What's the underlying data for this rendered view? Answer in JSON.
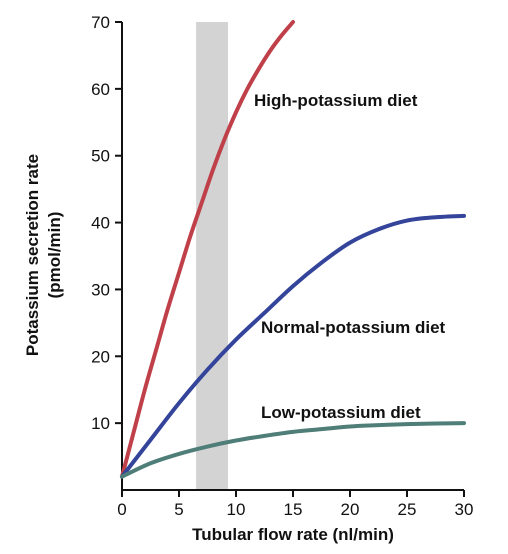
{
  "chart_data": {
    "type": "line",
    "xlabel": "Tubular flow rate (nl/min)",
    "ylabel_line1": "Potassium secretion rate",
    "ylabel_line2": "(pmol/min)",
    "xlim": [
      0,
      30
    ],
    "ylim": [
      0,
      70
    ],
    "x_ticks": [
      "0",
      "5",
      "10",
      "15",
      "20",
      "25",
      "30"
    ],
    "y_ticks": [
      "10",
      "20",
      "30",
      "40",
      "50",
      "60",
      "70"
    ],
    "grid": false,
    "shaded_band": {
      "x_start": 6.5,
      "x_end": 9.3,
      "color": "#d3d3d3"
    },
    "series": [
      {
        "name": "High-potassium diet",
        "color": "#c0404a",
        "x": [
          0,
          1,
          2,
          3,
          4,
          5,
          6,
          7,
          8,
          9,
          10,
          11,
          12,
          13,
          14,
          15
        ],
        "y": [
          2,
          8.5,
          15,
          21,
          27,
          32.5,
          38,
          43,
          48,
          52.5,
          56.5,
          60,
          63,
          65.7,
          68,
          70
        ]
      },
      {
        "name": "Normal-potassium diet",
        "color": "#33449a",
        "x": [
          0,
          2.5,
          5,
          7.5,
          10,
          12.5,
          15,
          17.5,
          20,
          22.5,
          25,
          27.5,
          30
        ],
        "y": [
          2,
          7.5,
          13,
          18,
          22.5,
          26.5,
          30.5,
          34,
          37,
          39,
          40.3,
          40.8,
          41
        ]
      },
      {
        "name": "Low-potassium diet",
        "color": "#4f7d78",
        "x": [
          0,
          2.5,
          5,
          7.5,
          10,
          12.5,
          15,
          17.5,
          20,
          22.5,
          25,
          27.5,
          30
        ],
        "y": [
          2,
          4,
          5.4,
          6.5,
          7.4,
          8.1,
          8.7,
          9.1,
          9.5,
          9.7,
          9.85,
          9.95,
          10
        ]
      }
    ]
  }
}
